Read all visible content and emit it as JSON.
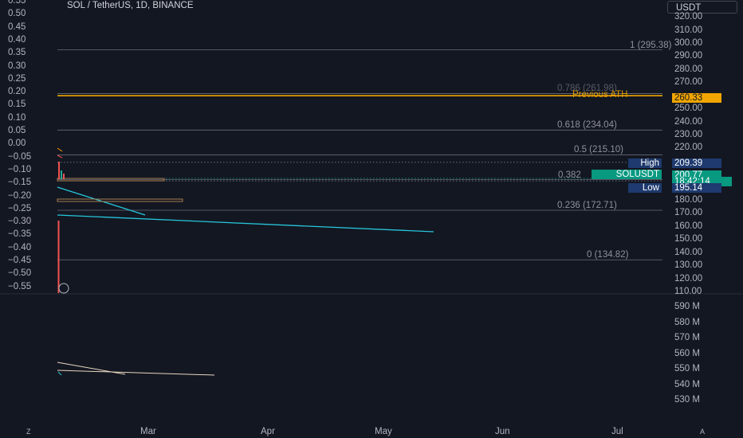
{
  "header": {
    "title": "SOL / TetherUS, 1D, BINANCE",
    "unit_button": "USDT"
  },
  "left_axis": {
    "ticks": [
      "0.55",
      "0.50",
      "0.45",
      "0.40",
      "0.35",
      "0.30",
      "0.25",
      "0.20",
      "0.15",
      "0.10",
      "0.05",
      "0.00",
      "−0.05",
      "−0.10",
      "−0.15",
      "−0.20",
      "−0.25",
      "−0.30",
      "−0.35",
      "−0.40",
      "−0.45",
      "−0.50",
      "−0.55"
    ]
  },
  "right_axis": {
    "price_ticks": [
      "320.00",
      "310.00",
      "300.00",
      "290.00",
      "280.00",
      "270.00",
      "250.00",
      "240.00",
      "230.00",
      "220.00",
      "190.00",
      "180.00",
      "170.00",
      "160.00",
      "150.00",
      "140.00",
      "130.00",
      "120.00",
      "110.00"
    ],
    "volume_ticks": [
      "590 M",
      "580 M",
      "570 M",
      "560 M",
      "550 M",
      "540 M",
      "530 M"
    ]
  },
  "fib_levels": [
    {
      "label": "1 (295.38)",
      "price": 295.38
    },
    {
      "label": "0.786 (261.98)",
      "price": 261.98
    },
    {
      "label": "0.618 (234.04)",
      "price": 234.04
    },
    {
      "label": "0.5 (215.10)",
      "price": 215.1
    },
    {
      "label": "0.382",
      "price": 196.16
    },
    {
      "label": "0.236 (172.71)",
      "price": 172.71
    },
    {
      "label": "0 (134.82)",
      "price": 134.82
    }
  ],
  "previous_ath": {
    "label": "Previous ATH",
    "value": "260.33",
    "color": "#f0a500"
  },
  "high": {
    "label": "High",
    "value": "209.39",
    "color": "#1e3a6e"
  },
  "low": {
    "label": "Low",
    "value": "195.14",
    "color": "#1e3a6e"
  },
  "last": {
    "symbol": "SOLUSDT",
    "value": "200.77",
    "countdown": "18:42:14",
    "color": "#089981"
  },
  "time_axis": {
    "labels": [
      "Mar",
      "Apr",
      "May",
      "Jun",
      "Jul"
    ]
  },
  "bottom_buttons": {
    "left": "Z",
    "right": "A"
  },
  "colors": {
    "trendline": "#26c6da",
    "fib": "#787b86",
    "ath": "#f0a500",
    "volume_line": "#e8d8c0",
    "candle_down": "#ef5350"
  }
}
